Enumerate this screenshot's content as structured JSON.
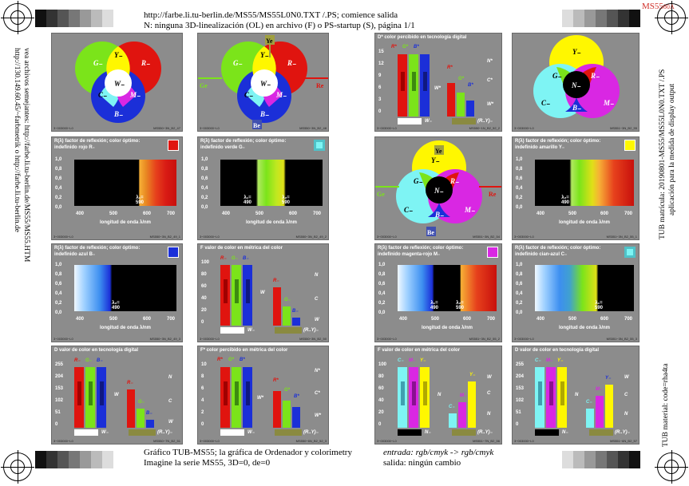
{
  "header": {
    "line1": "http://farbe.li.tu-berlin.de/MS55/MS55L0N0.TXT /.PS; comience salida",
    "line2": "N: ninguna 3D-linealización (OL) en archivo (F) o PS-startup (S), página 1/1",
    "corner_code": "MS55",
    "corner_sub": "80A"
  },
  "footer": {
    "line1": "Gráfico TUB-MS55; la gráfica de Ordenador y colorimetry",
    "line2": "Imagine la serie MS55, 3D=0, de=0",
    "input": "entrada: rgb/cmyk -> rgb/cmyk",
    "output": "salida: ningún cambio"
  },
  "left_side": {
    "line1": "vea archivos semejantes: http://farbe.li.tu-berlin.de/MS55/MS55.HTM",
    "line2": "http://130.149.60.45/~farbmetrik o http://farbe.li.tu-berlin.de"
  },
  "right_side": {
    "line1": "TUB material: code=rha4ta",
    "line2": "TUB matrícula: 20190801-MS55/MS55L0N0.TXT /.PS",
    "line3": "aplicación para la medida de display output"
  },
  "venn": {
    "y": "Y₋",
    "r": "R₋",
    "g": "G₋",
    "w": "W₋",
    "c": "C₋",
    "m": "M₋",
    "b": "B₋",
    "n": "N₋",
    "ye": "Ye",
    "re": "Re",
    "ge": "Ge",
    "be": "Be",
    "foot1": "MS550−3N_B2_47",
    "foot2": "MS550−3N_B2_48",
    "foot3": "MS551−3N_B2_55",
    "foot4": "MS551−3N_B2_54"
  },
  "spectra": {
    "title_red": "R(λ) factor de reflexión; color óptimo:",
    "sub_red": "indefinido rojo R₋",
    "title_green": "R(λ) factor de reflexión; color óptimo:",
    "sub_green": "indefinido verde G₋",
    "title_blue": "R(λ) factor de reflexión; color óptimo:",
    "sub_blue": "indefinido azul B₋",
    "title_yellow": "R(λ) factor de reflexión; color óptimo:",
    "sub_yellow": "indefinido amarillo Y₋",
    "title_magenta": "R(λ) factor de reflexión; color óptimo:",
    "sub_magenta": "indefinido magenta-rojo M₋",
    "title_cyan": "R(λ) factor de reflexión; color óptimo:",
    "sub_cyan": "indefinido cian-azul C₋",
    "xlabel": "longitud de onda λ/nm",
    "yticks": [
      "1,0",
      "0,8",
      "0,6",
      "0,4",
      "0,2",
      "0,0"
    ],
    "xticks": [
      "400",
      "500",
      "600",
      "700"
    ],
    "lambda_590": "λ₁= 590",
    "lambda_490": "λ₂= 490",
    "lambda1_490": "λ₁= 490",
    "lambda2_590": "λ₂= 590"
  },
  "bars": {
    "dstar_title": "D* color percibido en tecnología digital",
    "f_metric_title": "F valor de color en métrica del color",
    "d_digital_title": "D valor de color en tecnología digital",
    "fstar_title": "F* color percibido en métrica del color",
    "ticks15": [
      "15",
      "12",
      "9",
      "6",
      "3",
      "0"
    ],
    "ticks100": [
      "100",
      "80",
      "60",
      "40",
      "20",
      "0"
    ],
    "ticks255": [
      "255",
      "204",
      "153",
      "102",
      "51",
      "0"
    ],
    "ticks10": [
      "10",
      "8",
      "6",
      "4",
      "2",
      "0"
    ],
    "rstar": "R*",
    "gstar": "G*",
    "bstar": "B*",
    "rlab": "R₋",
    "glab": "G₋",
    "blab": "B₋",
    "clab": "C₋",
    "mlab": "M₋",
    "ylab": "Y₋",
    "w": "W",
    "wstar": "W*",
    "n": "N",
    "nstar": "N*",
    "c": "C",
    "cstar": "C*",
    "wminus": "W₋",
    "nminus": "N₋",
    "ry": "(R..Y)₋"
  },
  "foot_codes": [
    "3−003000−L0",
    "MS550−3N_B2_49_1",
    "MS550−3N_B2_49_2",
    "MS550−3N_B2_49_3",
    "MS551−3N_B2_55_1",
    "MS551−3N_B2_55_2",
    "MS551−3N_B2_55_3",
    "MS550−1N_B2_52_2",
    "MS550−3N_B2_50",
    "MS550−7N_B2_51",
    "MS550−6N_B2_52_3",
    "MS551−7N_B2_56",
    "MS551−6N_B2_57"
  ],
  "colors": {
    "panel": "#8c8c8c",
    "red": "#e0140f",
    "green": "#7be41a",
    "blue": "#1b2fd8",
    "yellow": "#fff700",
    "magenta": "#d927e3",
    "cyan": "#7ef4f4"
  }
}
